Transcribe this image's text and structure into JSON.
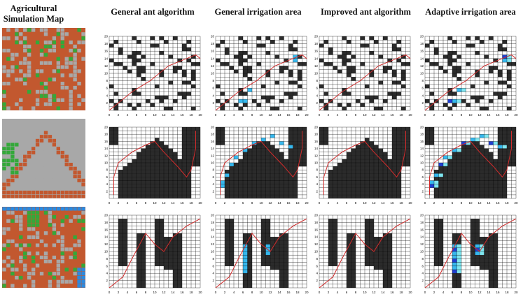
{
  "headers": {
    "map": "Agricultural\nSimulation Map",
    "col1": "General ant algorithm",
    "col2": "General irrigation area",
    "col3": "Improved ant algorithm",
    "col4": "Adaptive irrigation area"
  },
  "grid": {
    "size": 20,
    "x_ticks": [
      "0",
      "2",
      "4",
      "6",
      "8",
      "10",
      "12",
      "14",
      "16",
      "18",
      "20"
    ],
    "y_ticks": [
      "2",
      "4",
      "6",
      "8",
      "10",
      "12",
      "14",
      "16",
      "18",
      "20"
    ]
  },
  "colors": {
    "soil": "#c2582f",
    "block": "#a8a8a8",
    "crop": "#34a83a",
    "water": "#2a8ae0",
    "obstacle": "#2b2b2b",
    "path": "#d22b2b",
    "irrigate_light": "#36b8ee",
    "irrigate_pale": "#7fe6f0",
    "irrigate_dark": "#1f3fd0"
  }
}
